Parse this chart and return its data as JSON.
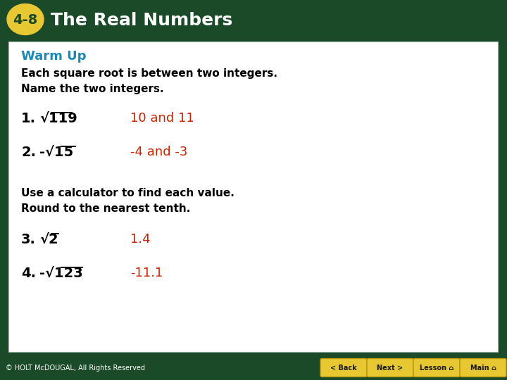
{
  "header_bg_color": "#1a4a28",
  "header_text_color": "#ffffff",
  "header_label_bg": "#e8c832",
  "header_label_text": "4-8",
  "header_title": "The Real Numbers",
  "footer_bg_color": "#4a9a4a",
  "footer_copyright": "© HOLT McDOUGAL, All Rights Reserved",
  "footer_buttons": [
    "< Back",
    "Next >",
    "Lesson ⌂",
    "Main ⌂"
  ],
  "content_bg": "#ffffff",
  "content_border": "#aaaaaa",
  "warm_up_color": "#1a8ab5",
  "warm_up_text": "Warm Up",
  "body_text_color": "#000000",
  "answer_color": "#cc2200",
  "line1_label": "Each square root is between two integers.",
  "line2_label": "Name the two integers.",
  "q1_number": "1.",
  "q1_sqrt": "√119",
  "q1_answer": "10 and 11",
  "q2_number": "2.",
  "q2_sqrt": "-√15",
  "q2_answer": "-4 and -3",
  "mid_line1": "Use a calculator to find each value.",
  "mid_line2": "Round to the nearest tenth.",
  "q3_number": "3.",
  "q3_sqrt": "√2",
  "q3_answer": "1.4",
  "q4_number": "4.",
  "q4_sqrt": "-√123",
  "q4_answer": "-11.1",
  "fig_width": 7.2,
  "fig_height": 5.4,
  "dpi": 100
}
